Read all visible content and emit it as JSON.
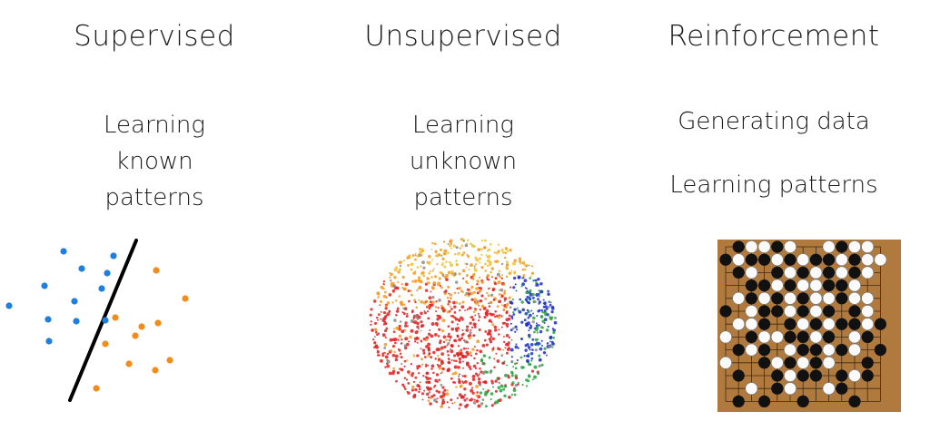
{
  "columns": [
    {
      "title": "Supervised",
      "lines": [
        "Learning",
        "known",
        "patterns"
      ]
    },
    {
      "title": "Unsupervised",
      "lines": [
        "Learning",
        "unknown",
        "patterns"
      ]
    },
    {
      "title": "Reinforcement",
      "lines": [
        "Generating data",
        "Learning patterns"
      ]
    }
  ],
  "colors": {
    "class_a": "#1f7fe0",
    "class_b": "#f28c1a",
    "boundary": "#000000",
    "board": "#b07a3e",
    "cluster_red": "#e02020",
    "cluster_orange": "#f39a1e",
    "cluster_yellow": "#f1c232",
    "cluster_blue": "#1b2fc9",
    "cluster_green": "#27a53a"
  },
  "icons": {
    "supervised": "scatter-with-decision-boundary",
    "unsupervised": "clustered-point-cloud",
    "reinforcement": "go-board"
  }
}
